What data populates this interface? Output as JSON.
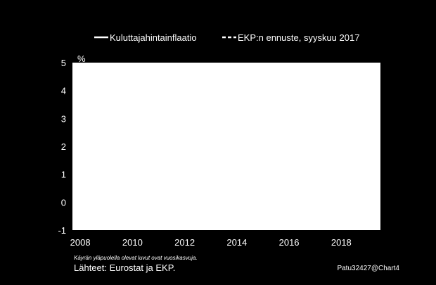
{
  "chart_data": {
    "type": "line",
    "ylabel": "%",
    "ylim": [
      -1,
      5
    ],
    "yticks": [
      5,
      4,
      3,
      2,
      1,
      0,
      -1
    ],
    "xlim": [
      2007.7,
      2019.5
    ],
    "xticks": [
      2008,
      2010,
      2012,
      2014,
      2016,
      2018
    ],
    "legend_position": "top",
    "series": [
      {
        "name": "Kuluttajahintainflaatio",
        "style": "solid",
        "color": "#ffffff",
        "points": []
      },
      {
        "name": "EKP:n ennuste, syyskuu 2017",
        "style": "dashed",
        "color": "#ffffff",
        "points": []
      }
    ],
    "plot_background": "#ffffff"
  },
  "footer": {
    "note": "Käyrän yläpuolella olevat luvut ovat vuosikasvuja.",
    "source": "Lähteet: Eurostat ja EKP.",
    "code": "Patu32427@Chart4"
  }
}
